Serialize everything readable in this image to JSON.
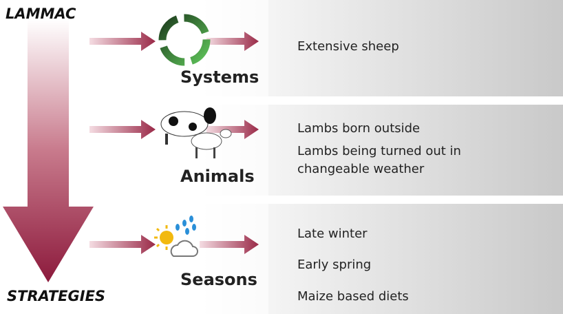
{
  "header": {
    "title": "LAMMAC"
  },
  "footer": {
    "title": "STRATEGIES"
  },
  "rows": [
    {
      "label": "Systems",
      "items": [
        "Extensive sheep"
      ]
    },
    {
      "label": "Animals",
      "items": [
        "Lambs born outside",
        "Lambs being turned out in changeable weather"
      ]
    },
    {
      "label": "Seasons",
      "items": [
        "Late winter",
        "Early spring",
        "Maize based diets"
      ]
    }
  ]
}
